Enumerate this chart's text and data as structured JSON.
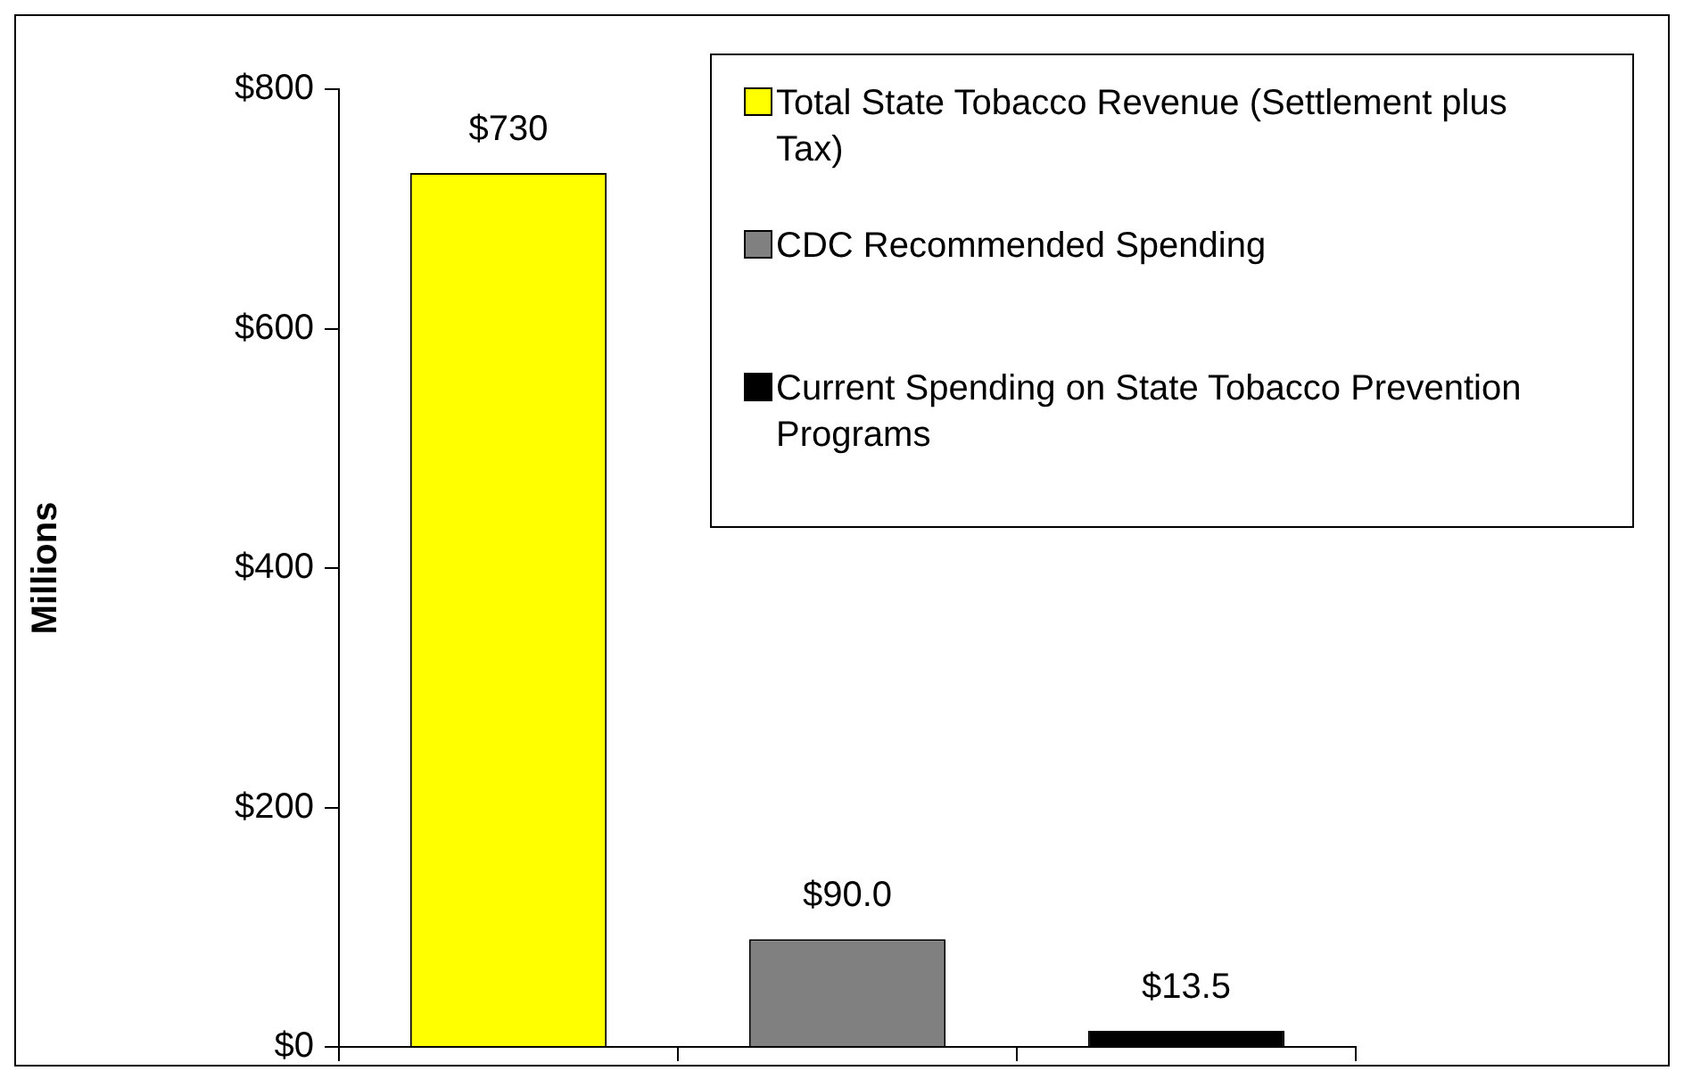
{
  "chart_data": {
    "type": "bar",
    "ylabel": "Millions",
    "categories": [
      null,
      null,
      null
    ],
    "series": [
      {
        "name": "Total State Tobacco Revenue (Settlement plus Tax)",
        "color": "#ffff00",
        "values": [
          730,
          null,
          null
        ],
        "value_labels": [
          "$730",
          null,
          null
        ]
      },
      {
        "name": "CDC Recommended Spending",
        "color": "#808080",
        "values": [
          null,
          90,
          null
        ],
        "value_labels": [
          null,
          "$90.0",
          null
        ]
      },
      {
        "name": "Current Spending on State Tobacco Prevention Programs",
        "color": "#000000",
        "values": [
          null,
          null,
          13.5
        ],
        "value_labels": [
          null,
          null,
          "$13.5"
        ]
      }
    ],
    "ylim": [
      0,
      800
    ],
    "yticks": [
      {
        "value": 0,
        "label": "$0"
      },
      {
        "value": 200,
        "label": "$200"
      },
      {
        "value": 400,
        "label": "$400"
      },
      {
        "value": 600,
        "label": "$600"
      },
      {
        "value": 800,
        "label": "$800"
      }
    ],
    "grid": false,
    "legend": "top right"
  }
}
